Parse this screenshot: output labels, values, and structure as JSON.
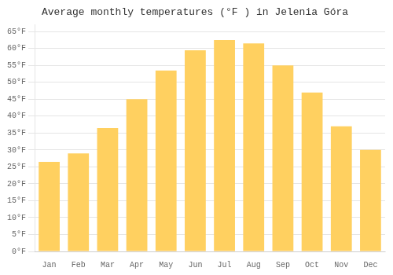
{
  "chart_data": {
    "type": "bar",
    "title": "Average monthly temperatures (°F ) in Jelenia Góra",
    "categories": [
      "Jan",
      "Feb",
      "Mar",
      "Apr",
      "May",
      "Jun",
      "Jul",
      "Aug",
      "Sep",
      "Oct",
      "Nov",
      "Dec"
    ],
    "values": [
      26.5,
      29.0,
      36.5,
      45.0,
      53.5,
      59.5,
      62.5,
      61.5,
      55.0,
      47.0,
      37.0,
      30.0
    ],
    "color": "#FFD060",
    "ylim": [
      0,
      67
    ],
    "yticks": [
      {
        "value": 0,
        "label": "0°F"
      },
      {
        "value": 5,
        "label": "5°F"
      },
      {
        "value": 10,
        "label": "10°F"
      },
      {
        "value": 15,
        "label": "15°F"
      },
      {
        "value": 20,
        "label": "20°F"
      },
      {
        "value": 25,
        "label": "25°F"
      },
      {
        "value": 30,
        "label": "30°F"
      },
      {
        "value": 35,
        "label": "35°F"
      },
      {
        "value": 40,
        "label": "40°F"
      },
      {
        "value": 45,
        "label": "45°F"
      },
      {
        "value": 50,
        "label": "50°F"
      },
      {
        "value": 55,
        "label": "55°F"
      },
      {
        "value": 60,
        "label": "60°F"
      },
      {
        "value": 65,
        "label": "65°F"
      }
    ],
    "grid": true
  }
}
